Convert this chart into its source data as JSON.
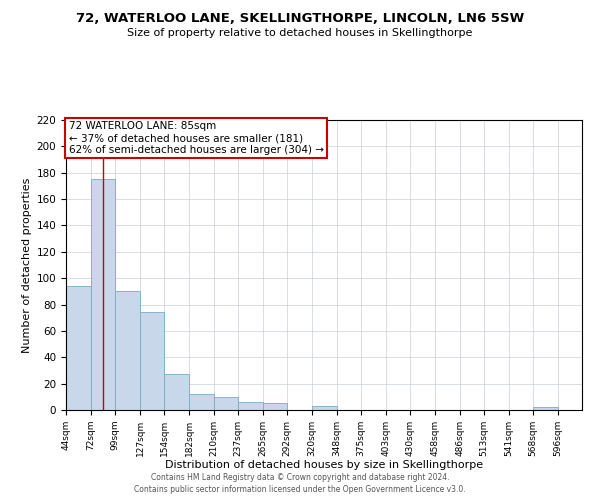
{
  "title": "72, WATERLOO LANE, SKELLINGTHORPE, LINCOLN, LN6 5SW",
  "subtitle": "Size of property relative to detached houses in Skellingthorpe",
  "xlabel": "Distribution of detached houses by size in Skellingthorpe",
  "ylabel": "Number of detached properties",
  "bar_color": "#c8d8ea",
  "bar_edge_color": "#7aaac8",
  "background_color": "#ffffff",
  "grid_color": "#c8d0d8",
  "annotation_line_color": "#cc0000",
  "annotation_box_color": "#cc0000",
  "annotation_line1": "72 WATERLOO LANE: 85sqm",
  "annotation_line2": "← 37% of detached houses are smaller (181)",
  "annotation_line3": "62% of semi-detached houses are larger (304) →",
  "property_size": 85,
  "xlim_left": 44,
  "xlim_right": 623,
  "ylim": [
    0,
    220
  ],
  "yticks": [
    0,
    20,
    40,
    60,
    80,
    100,
    120,
    140,
    160,
    180,
    200,
    220
  ],
  "bin_edges": [
    44,
    72,
    99,
    127,
    154,
    182,
    210,
    237,
    265,
    292,
    320,
    348,
    375,
    403,
    430,
    458,
    486,
    513,
    541,
    568,
    596
  ],
  "bin_labels": [
    "44sqm",
    "72sqm",
    "99sqm",
    "127sqm",
    "154sqm",
    "182sqm",
    "210sqm",
    "237sqm",
    "265sqm",
    "292sqm",
    "320sqm",
    "348sqm",
    "375sqm",
    "403sqm",
    "430sqm",
    "458sqm",
    "486sqm",
    "513sqm",
    "541sqm",
    "568sqm",
    "596sqm"
  ],
  "bar_heights": [
    94,
    175,
    90,
    74,
    27,
    12,
    10,
    6,
    5,
    0,
    3,
    0,
    0,
    0,
    0,
    0,
    0,
    0,
    0,
    2
  ],
  "footer_line1": "Contains HM Land Registry data © Crown copyright and database right 2024.",
  "footer_line2": "Contains public sector information licensed under the Open Government Licence v3.0."
}
